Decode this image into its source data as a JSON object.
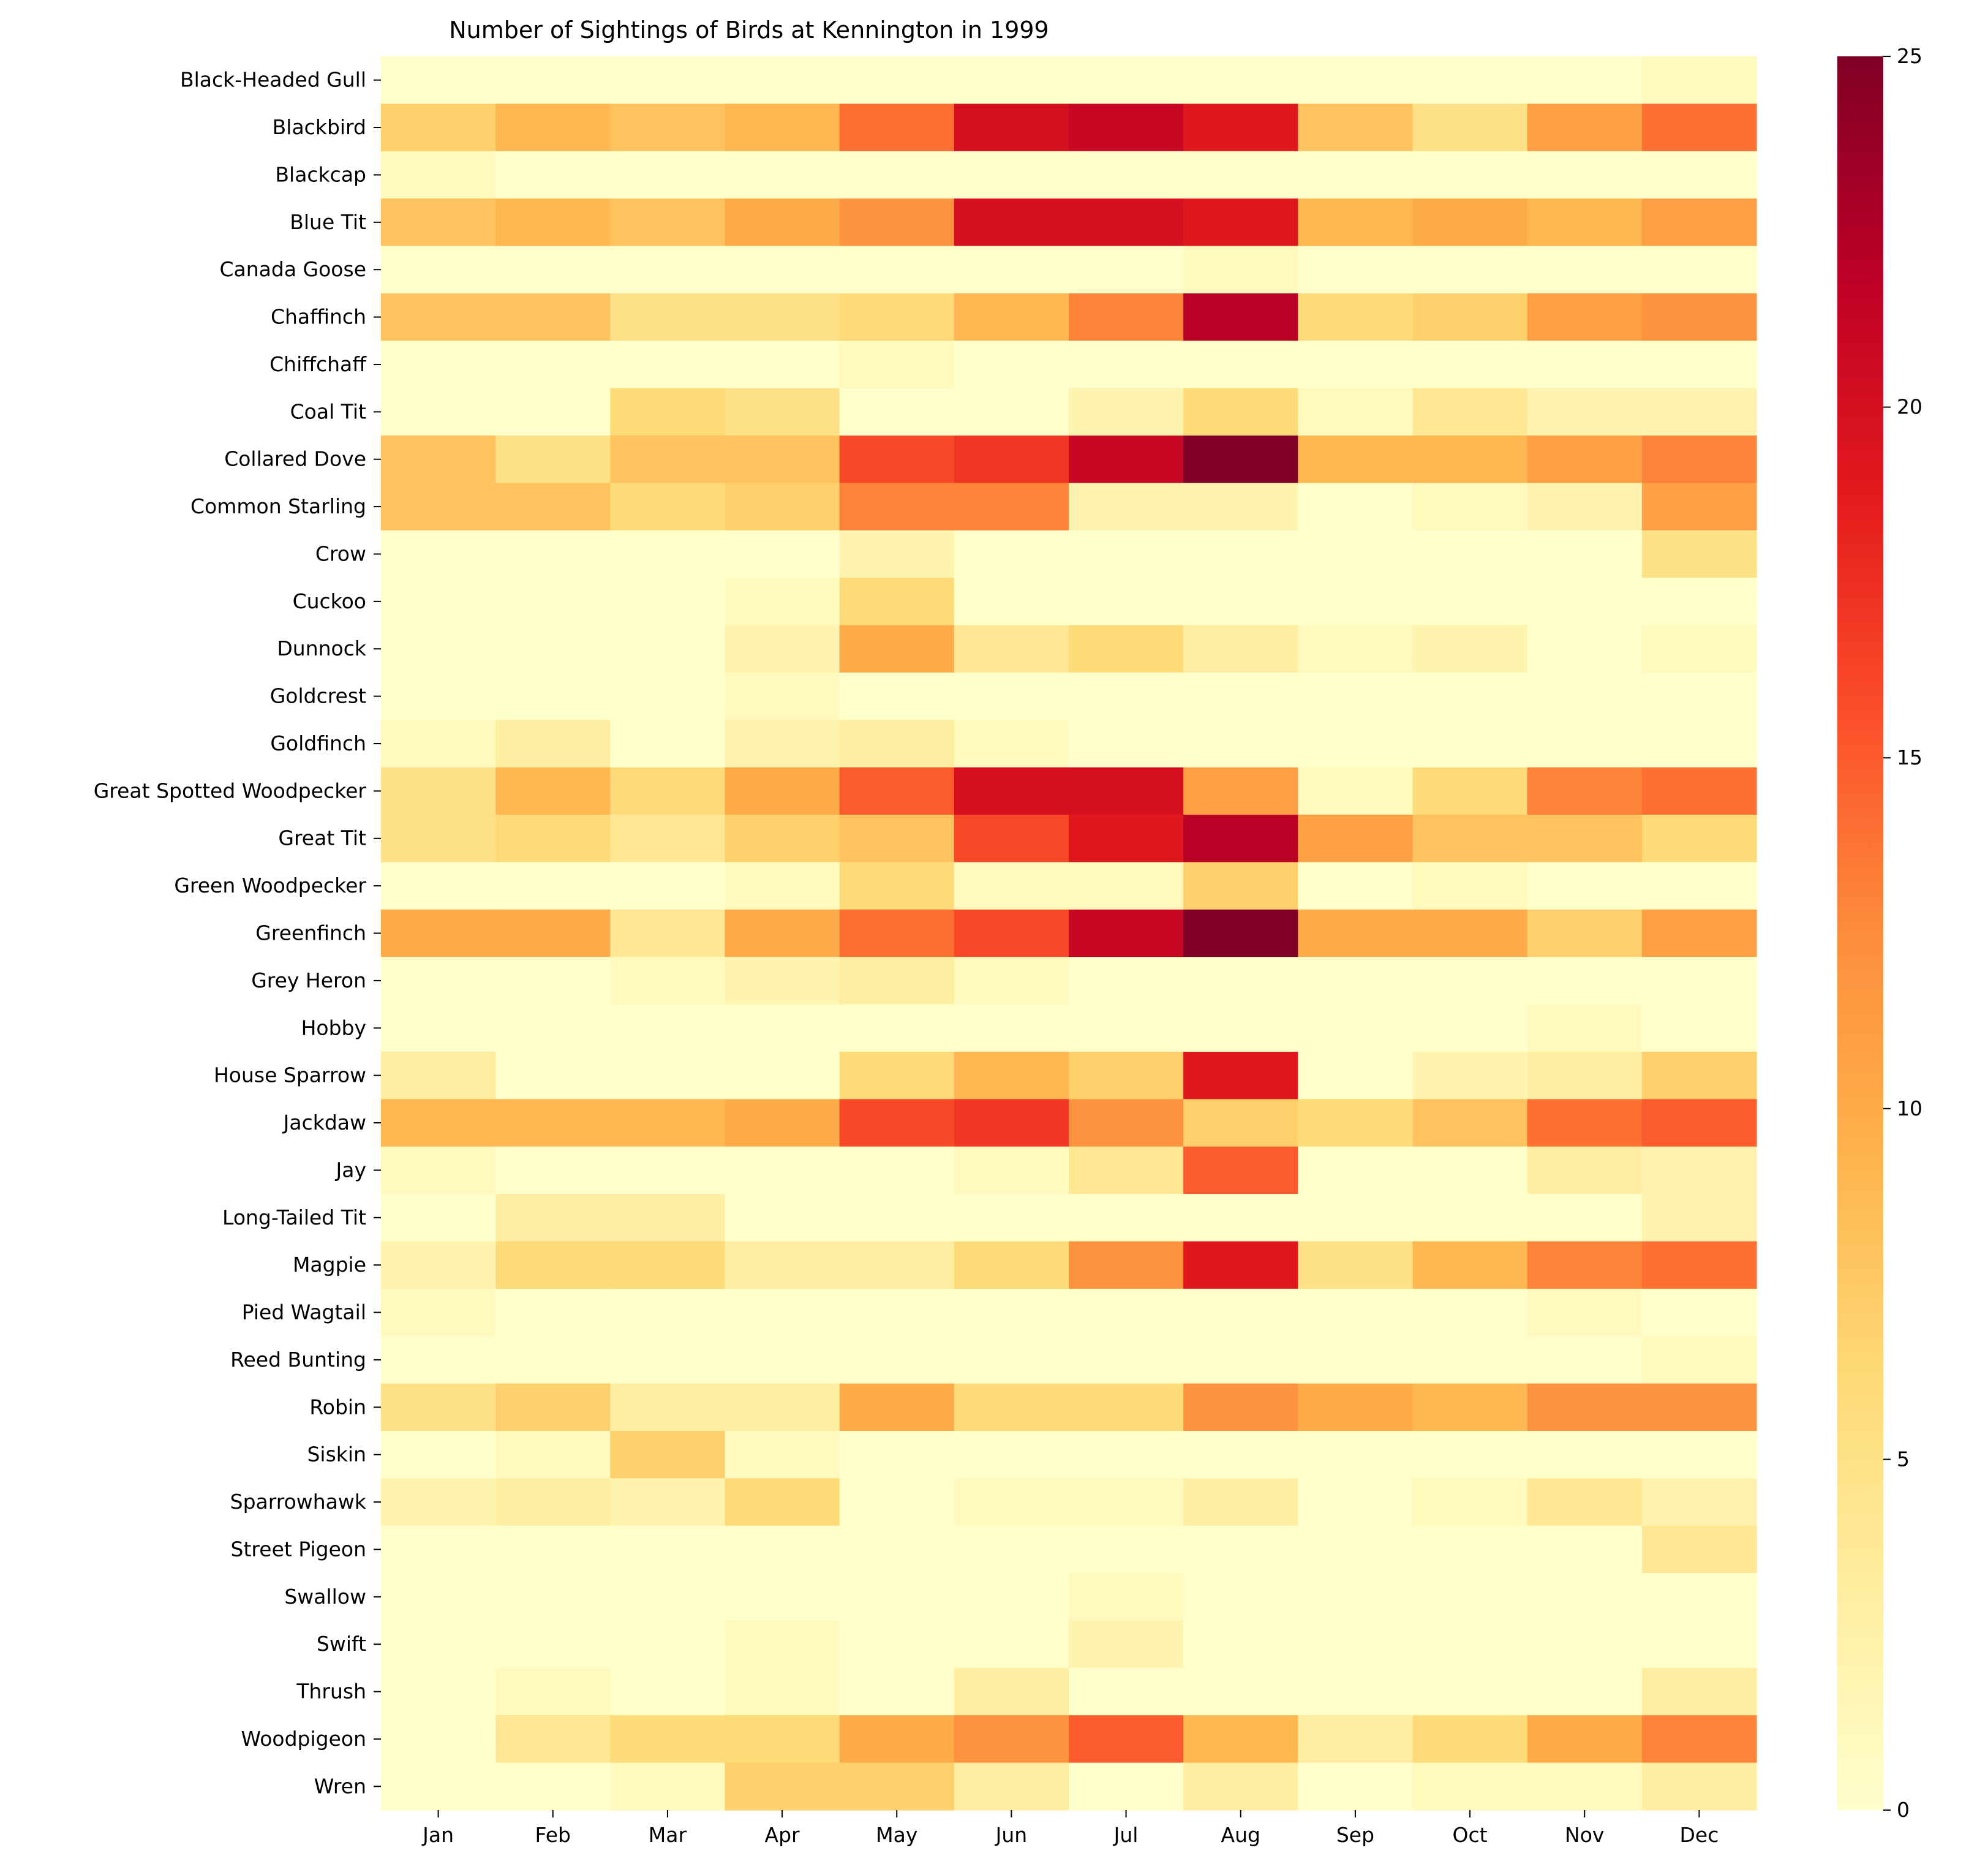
{
  "chart_data": {
    "type": "heatmap",
    "title": "Number of Sightings of Birds at Kennington in 1999",
    "xlabel": "",
    "ylabel": "",
    "x": [
      "Jan",
      "Feb",
      "Mar",
      "Apr",
      "May",
      "Jun",
      "Jul",
      "Aug",
      "Sep",
      "Oct",
      "Nov",
      "Dec"
    ],
    "y": [
      "Black-Headed Gull",
      "Blackbird",
      "Blackcap",
      "Blue Tit",
      "Canada Goose",
      "Chaffinch",
      "Chiffchaff",
      "Coal Tit",
      "Collared Dove",
      "Common Starling",
      "Crow",
      "Cuckoo",
      "Dunnock",
      "Goldcrest",
      "Goldfinch",
      "Great Spotted Woodpecker",
      "Great Tit",
      "Green Woodpecker",
      "Greenfinch",
      "Grey Heron",
      "Hobby",
      "House Sparrow",
      "Jackdaw",
      "Jay",
      "Long-Tailed Tit",
      "Magpie",
      "Pied Wagtail",
      "Reed Bunting",
      "Robin",
      "Siskin",
      "Sparrowhawk",
      "Street Pigeon",
      "Swallow",
      "Swift",
      "Thrush",
      "Woodpigeon",
      "Wren"
    ],
    "values": [
      [
        0,
        0,
        0,
        0,
        0,
        0,
        0,
        0,
        0,
        0,
        0,
        1
      ],
      [
        7,
        9,
        8,
        9,
        14,
        20,
        21,
        19,
        8,
        5,
        11,
        14
      ],
      [
        1,
        0,
        0,
        0,
        0,
        0,
        0,
        0,
        0,
        0,
        0,
        0
      ],
      [
        8,
        9,
        8,
        10,
        12,
        20,
        20,
        19,
        9,
        10,
        9,
        11
      ],
      [
        0,
        0,
        0,
        0,
        0,
        0,
        0,
        1,
        0,
        0,
        0,
        0
      ],
      [
        8,
        8,
        5,
        5,
        6,
        9,
        13,
        22,
        6,
        7,
        11,
        12
      ],
      [
        0,
        0,
        0,
        0,
        1,
        0,
        0,
        0,
        0,
        0,
        0,
        0
      ],
      [
        0,
        0,
        6,
        5,
        0,
        0,
        2,
        6,
        1,
        4,
        2,
        2
      ],
      [
        8,
        5,
        8,
        8,
        16,
        17,
        21,
        25,
        9,
        9,
        11,
        13
      ],
      [
        8,
        8,
        6,
        7,
        13,
        13,
        2,
        2,
        0,
        1,
        2,
        11
      ],
      [
        0,
        0,
        0,
        0,
        2,
        0,
        0,
        0,
        0,
        0,
        0,
        5
      ],
      [
        0,
        0,
        0,
        1,
        6,
        0,
        0,
        0,
        0,
        0,
        0,
        0
      ],
      [
        0,
        0,
        0,
        2,
        10,
        4,
        6,
        3,
        1,
        2,
        0,
        1
      ],
      [
        0,
        0,
        0,
        1,
        0,
        0,
        0,
        0,
        0,
        0,
        0,
        0
      ],
      [
        1,
        3,
        0,
        2,
        3,
        1,
        0,
        0,
        0,
        0,
        0,
        0
      ],
      [
        5,
        9,
        6,
        10,
        15,
        20,
        20,
        11,
        1,
        6,
        13,
        14
      ],
      [
        5,
        6,
        4,
        7,
        8,
        16,
        19,
        22,
        11,
        8,
        8,
        6
      ],
      [
        0,
        0,
        0,
        1,
        6,
        1,
        1,
        7,
        0,
        1,
        0,
        0
      ],
      [
        10,
        10,
        4,
        10,
        14,
        16,
        21,
        25,
        10,
        10,
        7,
        11
      ],
      [
        0,
        0,
        1,
        2,
        3,
        1,
        0,
        0,
        0,
        0,
        0,
        0
      ],
      [
        0,
        0,
        0,
        0,
        0,
        0,
        0,
        0,
        0,
        0,
        1,
        0
      ],
      [
        3,
        0,
        0,
        0,
        6,
        9,
        7,
        19,
        0,
        2,
        3,
        7
      ],
      [
        9,
        9,
        9,
        10,
        16,
        17,
        12,
        7,
        6,
        8,
        14,
        15
      ],
      [
        1,
        0,
        0,
        0,
        0,
        1,
        4,
        15,
        0,
        0,
        3,
        2
      ],
      [
        0,
        3,
        3,
        0,
        0,
        0,
        0,
        0,
        0,
        0,
        0,
        2
      ],
      [
        2,
        6,
        6,
        3,
        3,
        6,
        12,
        19,
        5,
        9,
        13,
        14
      ],
      [
        1,
        0,
        0,
        0,
        0,
        0,
        0,
        0,
        0,
        0,
        1,
        0
      ],
      [
        0,
        0,
        0,
        0,
        0,
        0,
        0,
        0,
        0,
        0,
        0,
        1
      ],
      [
        5,
        7,
        3,
        3,
        10,
        6,
        6,
        12,
        10,
        9,
        12,
        12
      ],
      [
        0,
        1,
        7,
        1,
        0,
        0,
        0,
        0,
        0,
        0,
        0,
        0
      ],
      [
        2,
        3,
        2,
        6,
        0,
        1,
        1,
        3,
        0,
        1,
        4,
        2
      ],
      [
        0,
        0,
        0,
        0,
        0,
        0,
        0,
        0,
        0,
        0,
        0,
        4
      ],
      [
        0,
        0,
        0,
        0,
        0,
        0,
        1,
        0,
        0,
        0,
        0,
        0
      ],
      [
        0,
        0,
        0,
        1,
        0,
        0,
        2,
        0,
        0,
        0,
        0,
        0
      ],
      [
        0,
        1,
        0,
        1,
        0,
        3,
        0,
        0,
        0,
        0,
        0,
        3
      ],
      [
        0,
        4,
        6,
        6,
        10,
        12,
        15,
        9,
        3,
        6,
        10,
        13
      ],
      [
        0,
        0,
        1,
        7,
        7,
        3,
        0,
        3,
        0,
        1,
        1,
        3
      ]
    ],
    "colorbar": {
      "min": 0,
      "max": 25,
      "ticks": [
        0,
        5,
        10,
        15,
        20,
        25
      ],
      "colormap": "YlOrRd"
    },
    "grid": false,
    "legend": "colorbar-right"
  }
}
